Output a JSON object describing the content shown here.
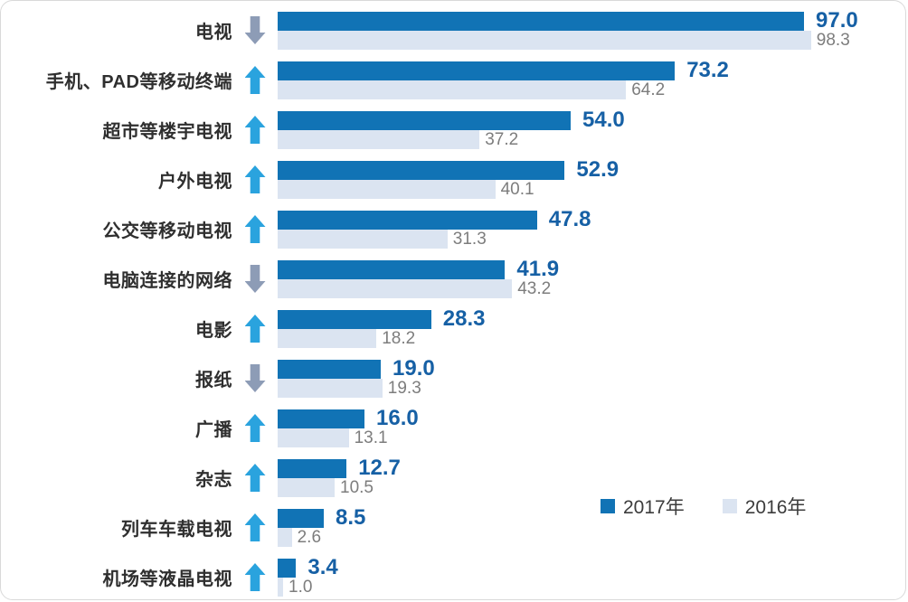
{
  "colors": {
    "bar_2017": "#1173b5",
    "bar_2016": "#dbe4f1",
    "value_2017_text": "#1660a5",
    "value_2016_text": "#7d7d7d",
    "trend_up_arrow": "#2aa3de",
    "trend_down_arrow": "#8d9cb6",
    "category_label_text": "#2f2f2f"
  },
  "legend": {
    "items": [
      {
        "label": "2017年",
        "color": "#1173b5"
      },
      {
        "label": "2016年",
        "color": "#dbe4f1"
      }
    ]
  },
  "chart_data": {
    "type": "bar",
    "orientation": "horizontal",
    "title": "",
    "xlabel": "",
    "ylabel": "",
    "xlim": [
      0,
      100
    ],
    "grid": false,
    "legend_position": "bottom-right",
    "value_labels": "each bar labeled with value to one decimal",
    "categories": [
      "电视",
      "手机、PAD等移动终端",
      "超市等楼宇电视",
      "户外电视",
      "公交等移动电视",
      "电脑连接的网络",
      "电影",
      "报纸",
      "广播",
      "杂志",
      "列车车载电视",
      "机场等液晶电视"
    ],
    "series": [
      {
        "name": "2017年",
        "values": [
          97.0,
          73.2,
          54.0,
          52.9,
          47.8,
          41.9,
          28.3,
          19.0,
          16.0,
          12.7,
          8.5,
          3.4
        ]
      },
      {
        "name": "2016年",
        "values": [
          98.3,
          64.2,
          37.2,
          40.1,
          31.3,
          43.2,
          18.2,
          19.3,
          13.1,
          10.5,
          2.6,
          1.0
        ]
      }
    ],
    "trends": [
      "down",
      "up",
      "up",
      "up",
      "up",
      "down",
      "up",
      "down",
      "up",
      "up",
      "up",
      "up"
    ]
  }
}
